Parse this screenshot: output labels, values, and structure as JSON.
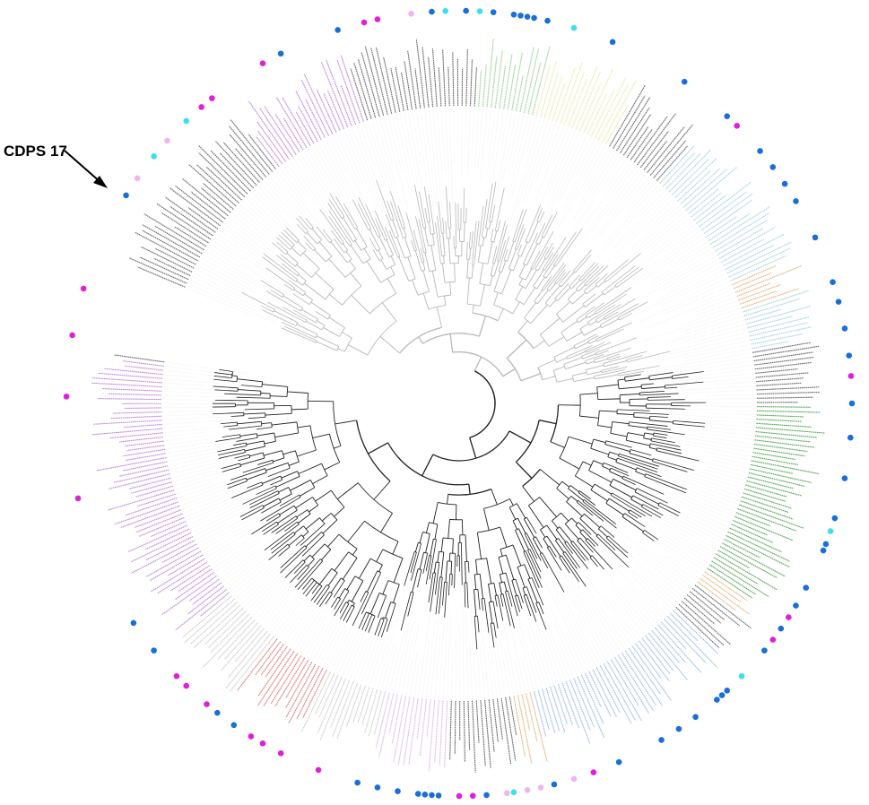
{
  "annotation": {
    "label": "CDPS 17"
  },
  "colors": {
    "branch": "#222222",
    "branch_light": "#b8b8bc",
    "label_dark": "#555555",
    "marker_blue": "#1a6fd6",
    "marker_magenta": "#e020d8",
    "marker_cyan": "#3ee0e8",
    "marker_pink": "#efb6ee",
    "clade_green": "#8fcf8a",
    "clade_yellow": "#e8e6a6",
    "clade_teal": "#9fd0d8",
    "clade_orange": "#e8a870",
    "clade_purple": "#b47ad8",
    "clade_lilac": "#d6b6e0",
    "clade_red": "#d86a6a",
    "clade_blue": "#8fb4e0",
    "clade_darkgreen": "#3e9a3e",
    "clade_grey": "#c8c8c8"
  },
  "tree": {
    "layout": "circular",
    "open_gap": "left",
    "markers": [
      {
        "angle": 212,
        "color": "blue"
      },
      {
        "angle": 215,
        "color": "pink"
      },
      {
        "angle": 219,
        "color": "cyan"
      },
      {
        "angle": 222,
        "color": "pink"
      },
      {
        "angle": 226,
        "color": "cyan"
      },
      {
        "angle": 229,
        "color": "magenta"
      },
      {
        "angle": 231,
        "color": "magenta"
      },
      {
        "angle": 240,
        "color": "magenta"
      },
      {
        "angle": 243,
        "color": "blue"
      },
      {
        "angle": 252,
        "color": "blue"
      },
      {
        "angle": 256,
        "color": "magenta"
      },
      {
        "angle": 258,
        "color": "magenta"
      },
      {
        "angle": 263,
        "color": "pink"
      },
      {
        "angle": 266,
        "color": "blue"
      },
      {
        "angle": 268,
        "color": "cyan"
      },
      {
        "angle": 271,
        "color": "blue"
      },
      {
        "angle": 273,
        "color": "cyan"
      },
      {
        "angle": 275,
        "color": "blue"
      },
      {
        "angle": 278,
        "color": "blue"
      },
      {
        "angle": 279,
        "color": "blue"
      },
      {
        "angle": 280,
        "color": "blue"
      },
      {
        "angle": 281,
        "color": "blue"
      },
      {
        "angle": 283,
        "color": "blue"
      },
      {
        "angle": 287,
        "color": "cyan"
      },
      {
        "angle": 293,
        "color": "blue"
      },
      {
        "angle": 305,
        "color": "blue"
      },
      {
        "angle": 313,
        "color": "blue"
      },
      {
        "angle": 315,
        "color": "magenta"
      },
      {
        "angle": 320,
        "color": "blue"
      },
      {
        "angle": 323,
        "color": "blue"
      },
      {
        "angle": 326,
        "color": "blue"
      },
      {
        "angle": 329,
        "color": "blue"
      },
      {
        "angle": 335,
        "color": "blue"
      },
      {
        "angle": 342,
        "color": "blue"
      },
      {
        "angle": 345,
        "color": "blue"
      },
      {
        "angle": 349,
        "color": "blue"
      },
      {
        "angle": 353,
        "color": "blue"
      },
      {
        "angle": 356,
        "color": "magenta"
      },
      {
        "angle": 360,
        "color": "blue"
      },
      {
        "angle": 5,
        "color": "blue"
      },
      {
        "angle": 11,
        "color": "blue"
      },
      {
        "angle": 17,
        "color": "blue"
      },
      {
        "angle": 19,
        "color": "cyan"
      },
      {
        "angle": 21,
        "color": "blue"
      },
      {
        "angle": 22,
        "color": "blue"
      },
      {
        "angle": 28,
        "color": "blue"
      },
      {
        "angle": 31,
        "color": "blue"
      },
      {
        "angle": 33,
        "color": "magenta"
      },
      {
        "angle": 35,
        "color": "blue"
      },
      {
        "angle": 37,
        "color": "magenta"
      },
      {
        "angle": 39,
        "color": "blue"
      },
      {
        "angle": 44,
        "color": "cyan"
      },
      {
        "angle": 47,
        "color": "blue"
      },
      {
        "angle": 48,
        "color": "blue"
      },
      {
        "angle": 49,
        "color": "blue"
      },
      {
        "angle": 53,
        "color": "blue"
      },
      {
        "angle": 56,
        "color": "blue"
      },
      {
        "angle": 59,
        "color": "blue"
      },
      {
        "angle": 66,
        "color": "blue"
      },
      {
        "angle": 70,
        "color": "magenta"
      },
      {
        "angle": 73,
        "color": "pink"
      },
      {
        "angle": 76,
        "color": "blue"
      },
      {
        "angle": 78,
        "color": "pink"
      },
      {
        "angle": 80,
        "color": "pink"
      },
      {
        "angle": 82,
        "color": "cyan"
      },
      {
        "angle": 83,
        "color": "pink"
      },
      {
        "angle": 86,
        "color": "blue"
      },
      {
        "angle": 88,
        "color": "magenta"
      },
      {
        "angle": 90,
        "color": "magenta"
      },
      {
        "angle": 93,
        "color": "blue"
      },
      {
        "angle": 94,
        "color": "blue"
      },
      {
        "angle": 95,
        "color": "blue"
      },
      {
        "angle": 96,
        "color": "blue"
      },
      {
        "angle": 99,
        "color": "blue"
      },
      {
        "angle": 102,
        "color": "blue"
      },
      {
        "angle": 105,
        "color": "blue"
      },
      {
        "angle": 111,
        "color": "magenta"
      },
      {
        "angle": 117,
        "color": "magenta"
      },
      {
        "angle": 120,
        "color": "magenta"
      },
      {
        "angle": 122,
        "color": "magenta"
      },
      {
        "angle": 125,
        "color": "blue"
      },
      {
        "angle": 128,
        "color": "blue"
      },
      {
        "angle": 130,
        "color": "magenta"
      },
      {
        "angle": 134,
        "color": "magenta"
      },
      {
        "angle": 136,
        "color": "magenta"
      },
      {
        "angle": 141,
        "color": "blue"
      },
      {
        "angle": 146,
        "color": "blue"
      },
      {
        "angle": 166,
        "color": "magenta"
      },
      {
        "angle": 181,
        "color": "magenta"
      },
      {
        "angle": 190,
        "color": "magenta"
      },
      {
        "angle": 197,
        "color": "magenta"
      }
    ],
    "clades": [
      {
        "from": 203,
        "to": 232,
        "color": "label_dark"
      },
      {
        "from": 232,
        "to": 252,
        "color": "clade_purple"
      },
      {
        "from": 252,
        "to": 273,
        "color": "label_dark"
      },
      {
        "from": 273,
        "to": 285,
        "color": "clade_green"
      },
      {
        "from": 285,
        "to": 300,
        "color": "clade_yellow"
      },
      {
        "from": 300,
        "to": 312,
        "color": "label_dark"
      },
      {
        "from": 312,
        "to": 336,
        "color": "clade_teal"
      },
      {
        "from": 336,
        "to": 342,
        "color": "clade_orange"
      },
      {
        "from": 342,
        "to": 350,
        "color": "clade_teal"
      },
      {
        "from": 350,
        "to": 360,
        "color": "label_dark"
      },
      {
        "from": 0,
        "to": 34,
        "color": "clade_darkgreen"
      },
      {
        "from": 34,
        "to": 37,
        "color": "clade_orange"
      },
      {
        "from": 37,
        "to": 44,
        "color": "label_dark"
      },
      {
        "from": 44,
        "to": 76,
        "color": "clade_blue"
      },
      {
        "from": 76,
        "to": 80,
        "color": "clade_orange"
      },
      {
        "from": 80,
        "to": 92,
        "color": "label_dark"
      },
      {
        "from": 92,
        "to": 104,
        "color": "clade_lilac"
      },
      {
        "from": 104,
        "to": 116,
        "color": "clade_grey"
      },
      {
        "from": 116,
        "to": 128,
        "color": "clade_red"
      },
      {
        "from": 128,
        "to": 140,
        "color": "clade_grey"
      },
      {
        "from": 140,
        "to": 176,
        "color": "clade_purple"
      },
      {
        "from": 176,
        "to": 188,
        "color": "clade_purple"
      }
    ]
  }
}
